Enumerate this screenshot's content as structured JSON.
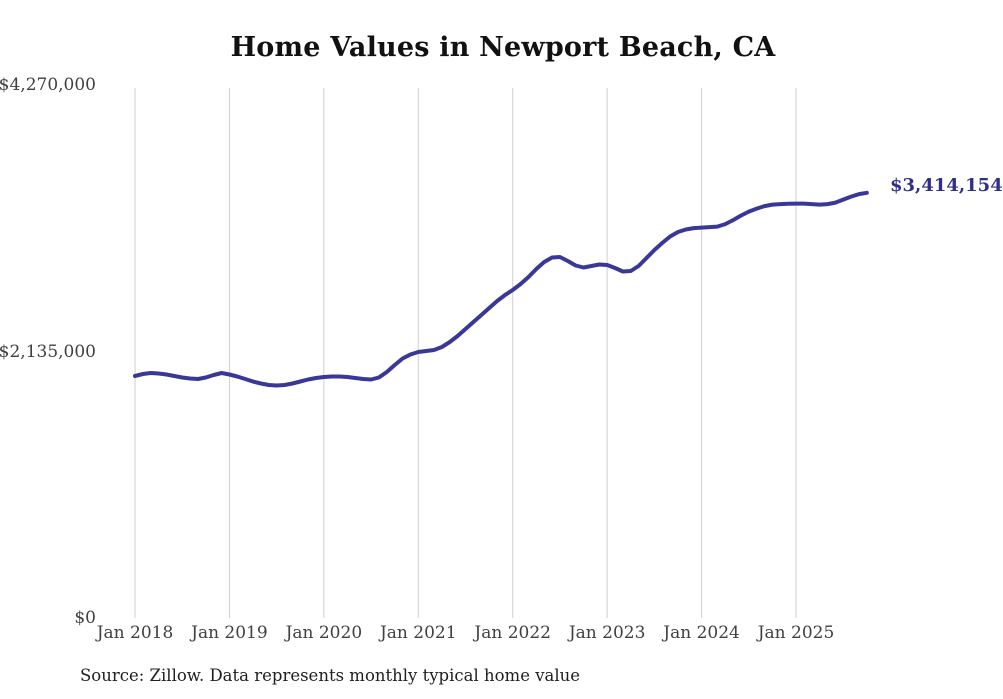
{
  "page": {
    "background": "#ffffff"
  },
  "header": {
    "title": "Home Values in Newport Beach, CA"
  },
  "footer": {
    "source_note": "Source: Zillow. Data represents monthly typical home value"
  },
  "annotations": {
    "end_value_label": "$3,414,154"
  },
  "colors": {
    "line": "#3a3897",
    "grid": "#cfcfcf",
    "title": "#111111",
    "tick": "#404040",
    "end_label": "#2f2e8b",
    "source": "#1f1f1f"
  },
  "chart_data": {
    "type": "line",
    "title": "Home Values in Newport Beach, CA",
    "xlabel": "",
    "ylabel": "",
    "x_unit": "month",
    "x_start": "2018-01",
    "x_end": "2025-10",
    "grid": "vertical-only",
    "legend": "none",
    "ylim": [
      0,
      4270000
    ],
    "yticks": [
      {
        "label": "$0",
        "value": 0
      },
      {
        "label": "$2,135,000",
        "value": 2135000
      },
      {
        "label": "$4,270,000",
        "value": 4270000
      }
    ],
    "xticks": [
      "Jan 2018",
      "Jan 2019",
      "Jan 2020",
      "Jan 2021",
      "Jan 2022",
      "Jan 2023",
      "Jan 2024",
      "Jan 2025"
    ],
    "end_value_label": "$3,414,154",
    "series": [
      {
        "name": "Monthly typical home value",
        "values": [
          1947000,
          1963000,
          1971000,
          1967000,
          1959000,
          1947000,
          1935000,
          1927000,
          1923000,
          1935000,
          1955000,
          1971000,
          1959000,
          1943000,
          1923000,
          1903000,
          1887000,
          1875000,
          1871000,
          1875000,
          1887000,
          1903000,
          1919000,
          1931000,
          1939000,
          1943000,
          1943000,
          1939000,
          1931000,
          1923000,
          1919000,
          1935000,
          1979000,
          2035000,
          2087000,
          2119000,
          2139000,
          2147000,
          2155000,
          2179000,
          2219000,
          2267000,
          2323000,
          2379000,
          2435000,
          2491000,
          2547000,
          2595000,
          2636000,
          2684000,
          2740000,
          2804000,
          2860000,
          2896000,
          2900000,
          2868000,
          2832000,
          2816000,
          2828000,
          2840000,
          2836000,
          2812000,
          2784000,
          2788000,
          2828000,
          2892000,
          2956000,
          3012000,
          3064000,
          3100000,
          3120000,
          3132000,
          3136000,
          3140000,
          3144000,
          3164000,
          3196000,
          3232000,
          3264000,
          3288000,
          3308000,
          3320000,
          3324000,
          3326000,
          3328000,
          3328000,
          3324000,
          3320000,
          3324000,
          3336000,
          3360000,
          3384000,
          3404000,
          3414154
        ]
      }
    ]
  }
}
